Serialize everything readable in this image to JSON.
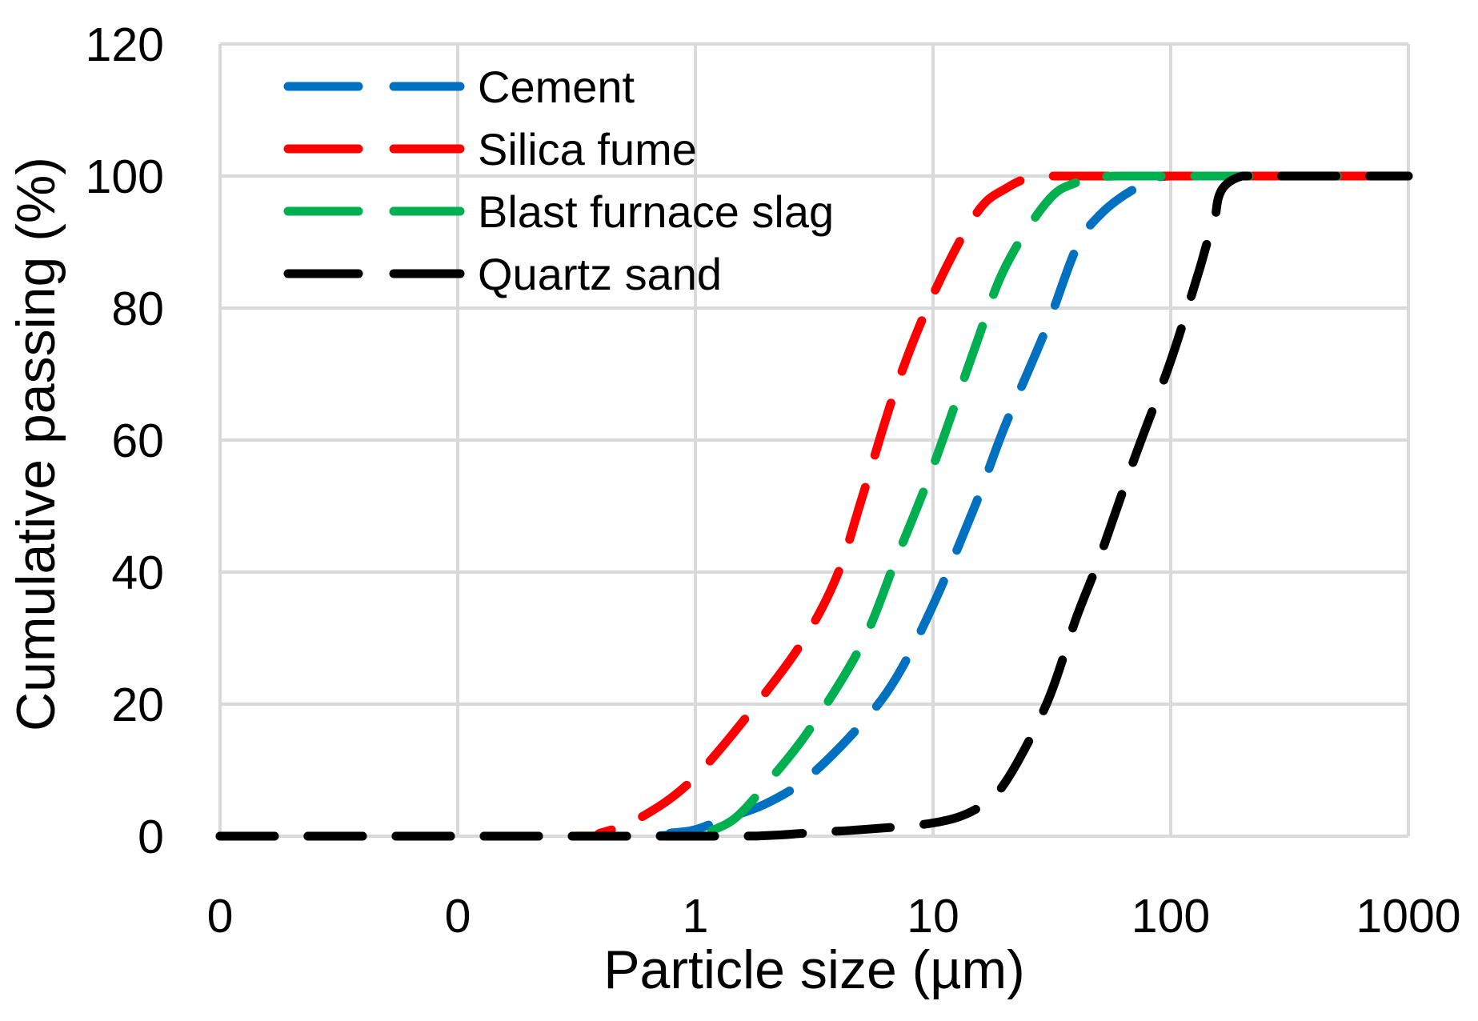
{
  "chart_data": {
    "type": "line",
    "title": "",
    "xlabel": "Particle size (µm)",
    "ylabel": "Cumulative passing (%)",
    "x_scale": "log",
    "xlim": [
      0.01,
      1000
    ],
    "ylim": [
      0,
      120
    ],
    "grid": true,
    "legend_position": "top-left",
    "x_tick_values": [
      0.01,
      0.1,
      1,
      10,
      100,
      1000
    ],
    "x_tick_labels": [
      "0",
      "0",
      "1",
      "10",
      "100",
      "1000"
    ],
    "y_tick_values": [
      0,
      20,
      40,
      60,
      80,
      100,
      120
    ],
    "y_tick_labels": [
      "0",
      "20",
      "40",
      "60",
      "80",
      "100",
      "120"
    ],
    "series": [
      {
        "name": "Cement",
        "color": "#0070C0",
        "points": [
          [
            0.01,
            0
          ],
          [
            0.5,
            0
          ],
          [
            0.8,
            0.5
          ],
          [
            1,
            1
          ],
          [
            1.3,
            2.5
          ],
          [
            2,
            5
          ],
          [
            3,
            9
          ],
          [
            5,
            17
          ],
          [
            7,
            24
          ],
          [
            10,
            35
          ],
          [
            15,
            50
          ],
          [
            20,
            62
          ],
          [
            30,
            77
          ],
          [
            40,
            89
          ],
          [
            50,
            94
          ],
          [
            70,
            98
          ],
          [
            100,
            100
          ],
          [
            1000,
            100
          ]
        ]
      },
      {
        "name": "Silica fume",
        "color": "#FF0000",
        "points": [
          [
            0.01,
            0
          ],
          [
            0.3,
            0
          ],
          [
            0.4,
            0.5
          ],
          [
            0.6,
            3
          ],
          [
            1,
            9
          ],
          [
            2,
            22
          ],
          [
            3,
            31
          ],
          [
            4,
            40
          ],
          [
            5,
            51
          ],
          [
            7,
            68
          ],
          [
            10,
            82
          ],
          [
            15,
            94
          ],
          [
            20,
            98
          ],
          [
            30,
            100
          ],
          [
            100,
            100
          ],
          [
            1000,
            100
          ]
        ]
      },
      {
        "name": "Blast furnace slag",
        "color": "#00B050",
        "points": [
          [
            0.01,
            0
          ],
          [
            0.8,
            0
          ],
          [
            1,
            0.3
          ],
          [
            1.2,
            1
          ],
          [
            1.5,
            3
          ],
          [
            2,
            8
          ],
          [
            3,
            16
          ],
          [
            5,
            29
          ],
          [
            7,
            42
          ],
          [
            10,
            56
          ],
          [
            15,
            74
          ],
          [
            20,
            86
          ],
          [
            30,
            96
          ],
          [
            40,
            99
          ],
          [
            60,
            100
          ],
          [
            1000,
            100
          ]
        ]
      },
      {
        "name": "Quartz sand",
        "color": "#000000",
        "points": [
          [
            0.01,
            0
          ],
          [
            1,
            0
          ],
          [
            2,
            0.1
          ],
          [
            3,
            0.5
          ],
          [
            5,
            1
          ],
          [
            10,
            2
          ],
          [
            15,
            4
          ],
          [
            20,
            8
          ],
          [
            30,
            20
          ],
          [
            40,
            33
          ],
          [
            50,
            42
          ],
          [
            70,
            57
          ],
          [
            100,
            72
          ],
          [
            130,
            85
          ],
          [
            150,
            92
          ],
          [
            200,
            100
          ],
          [
            1000,
            100
          ]
        ]
      }
    ]
  }
}
